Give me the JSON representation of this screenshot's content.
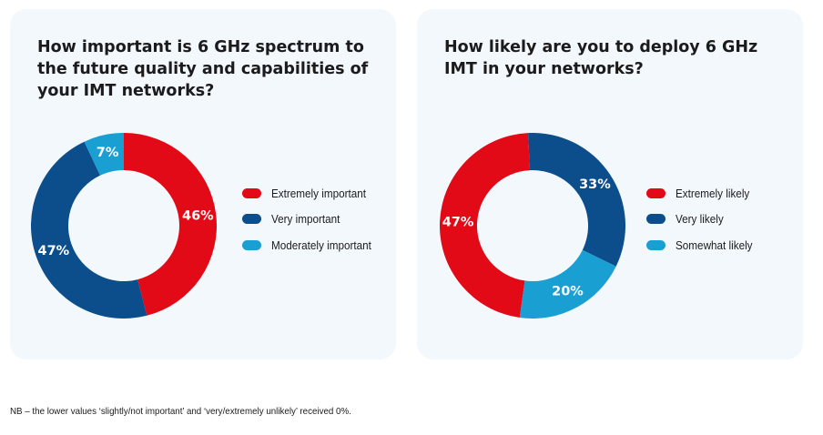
{
  "chart_data": [
    {
      "type": "pie",
      "title": "How important is 6 GHz spectrum to the future quality and capabilities of your IMT networks?",
      "categories": [
        "Extremely important",
        "Very important",
        "Moderately important"
      ],
      "values": [
        46,
        47,
        7
      ],
      "value_labels": [
        "46%",
        "47%",
        "7%"
      ],
      "colors": [
        "#e20a16",
        "#0c4d8c",
        "#1a9fd3"
      ],
      "start_angle_deg": 0,
      "donut": true,
      "legend_position": "right"
    },
    {
      "type": "pie",
      "title": "How likely are you to deploy 6 GHz IMT in your networks?",
      "categories": [
        "Extremely likely",
        "Very likely",
        "Somewhat likely"
      ],
      "values": [
        47,
        33,
        20
      ],
      "value_labels": [
        "47%",
        "33%",
        "20%"
      ],
      "colors": [
        "#e20a16",
        "#0c4d8c",
        "#1a9fd3"
      ],
      "start_angle_deg": 188,
      "donut": true,
      "legend_position": "right"
    }
  ],
  "footnote": "NB – the lower values ‘slightly/not important’ and ‘very/extremely unlikely’ received 0%."
}
